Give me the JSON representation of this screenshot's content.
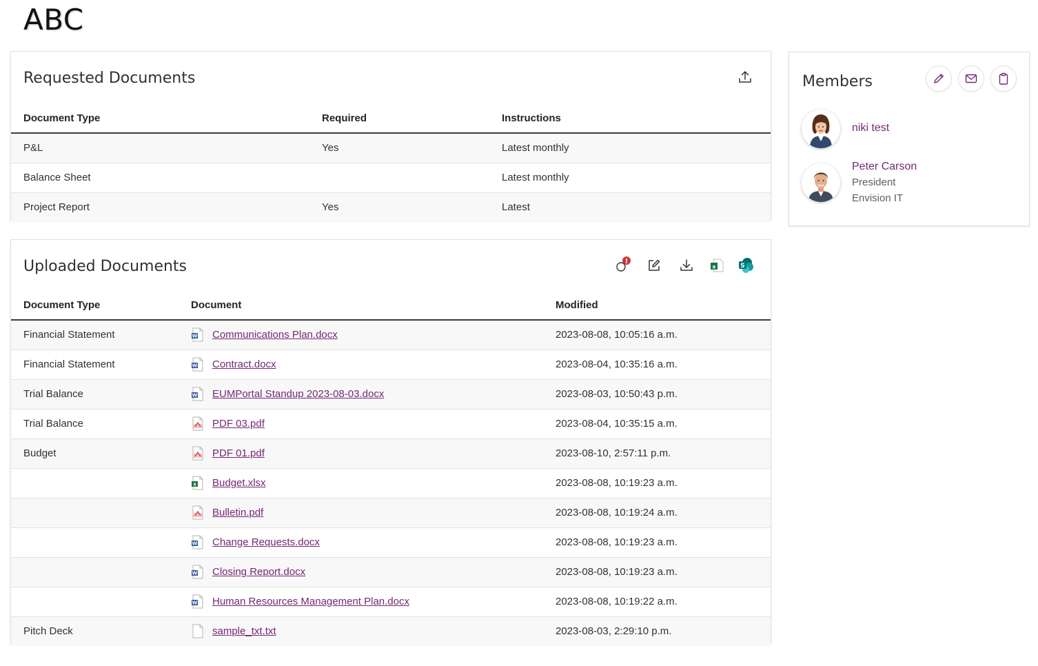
{
  "page": {
    "title": "ABC"
  },
  "requested": {
    "title": "Requested Documents",
    "columns": [
      "Document Type",
      "Required",
      "Instructions"
    ],
    "rows": [
      {
        "type": "P&L",
        "required": "Yes",
        "instructions": "Latest monthly"
      },
      {
        "type": "Balance Sheet",
        "required": "",
        "instructions": "Latest monthly"
      },
      {
        "type": "Project Report",
        "required": "Yes",
        "instructions": "Latest"
      }
    ],
    "toolbar": {
      "upload_icon": "upload-icon"
    }
  },
  "uploaded": {
    "title": "Uploaded Documents",
    "columns": [
      "Document Type",
      "Document",
      "Modified"
    ],
    "toolbar": {
      "icons": [
        "alert-refresh-icon",
        "edit-icon",
        "download-icon",
        "excel-export-icon",
        "sharepoint-icon"
      ],
      "alert_badge": "!"
    },
    "rows": [
      {
        "type": "Financial Statement",
        "file_icon": "word-icon",
        "name": "Communications Plan.docx",
        "modified": "2023-08-08, 10:05:16 a.m."
      },
      {
        "type": "Financial Statement",
        "file_icon": "word-icon",
        "name": "Contract.docx",
        "modified": "2023-08-04, 10:35:16 a.m."
      },
      {
        "type": "Trial Balance",
        "file_icon": "word-icon",
        "name": "EUMPortal Standup 2023-08-03.docx",
        "modified": "2023-08-03, 10:50:43 p.m."
      },
      {
        "type": "Trial Balance",
        "file_icon": "pdf-icon",
        "name": "PDF 03.pdf",
        "modified": "2023-08-04, 10:35:15 a.m."
      },
      {
        "type": "Budget",
        "file_icon": "pdf-icon",
        "name": "PDF 01.pdf",
        "modified": "2023-08-10, 2:57:11 p.m."
      },
      {
        "type": "",
        "file_icon": "excel-icon",
        "name": "Budget.xlsx",
        "modified": "2023-08-08, 10:19:23 a.m."
      },
      {
        "type": "",
        "file_icon": "pdf-icon",
        "name": "Bulletin.pdf",
        "modified": "2023-08-08, 10:19:24 a.m."
      },
      {
        "type": "",
        "file_icon": "word-icon",
        "name": "Change Requests.docx",
        "modified": "2023-08-08, 10:19:23 a.m."
      },
      {
        "type": "",
        "file_icon": "word-icon",
        "name": "Closing Report.docx",
        "modified": "2023-08-08, 10:19:23 a.m."
      },
      {
        "type": "",
        "file_icon": "word-icon",
        "name": "Human Resources Management Plan.docx",
        "modified": "2023-08-08, 10:19:22 a.m."
      },
      {
        "type": "Pitch Deck",
        "file_icon": "text-file-icon",
        "name": "sample_txt.txt",
        "modified": "2023-08-03, 2:29:10 p.m."
      }
    ]
  },
  "members": {
    "title": "Members",
    "actions": [
      "edit-icon",
      "mail-icon",
      "clipboard-icon"
    ],
    "people": [
      {
        "name": "niki test",
        "title": "",
        "company": "",
        "avatar": "female-avatar"
      },
      {
        "name": "Peter Carson",
        "title": "President",
        "company": "Envision IT",
        "avatar": "male-avatar"
      }
    ]
  },
  "colors": {
    "link": "#742774",
    "excel": "#1e7145",
    "word": "#2b579a",
    "pdf": "#d13438",
    "sharepoint": "#038387",
    "alert": "#d13438"
  }
}
